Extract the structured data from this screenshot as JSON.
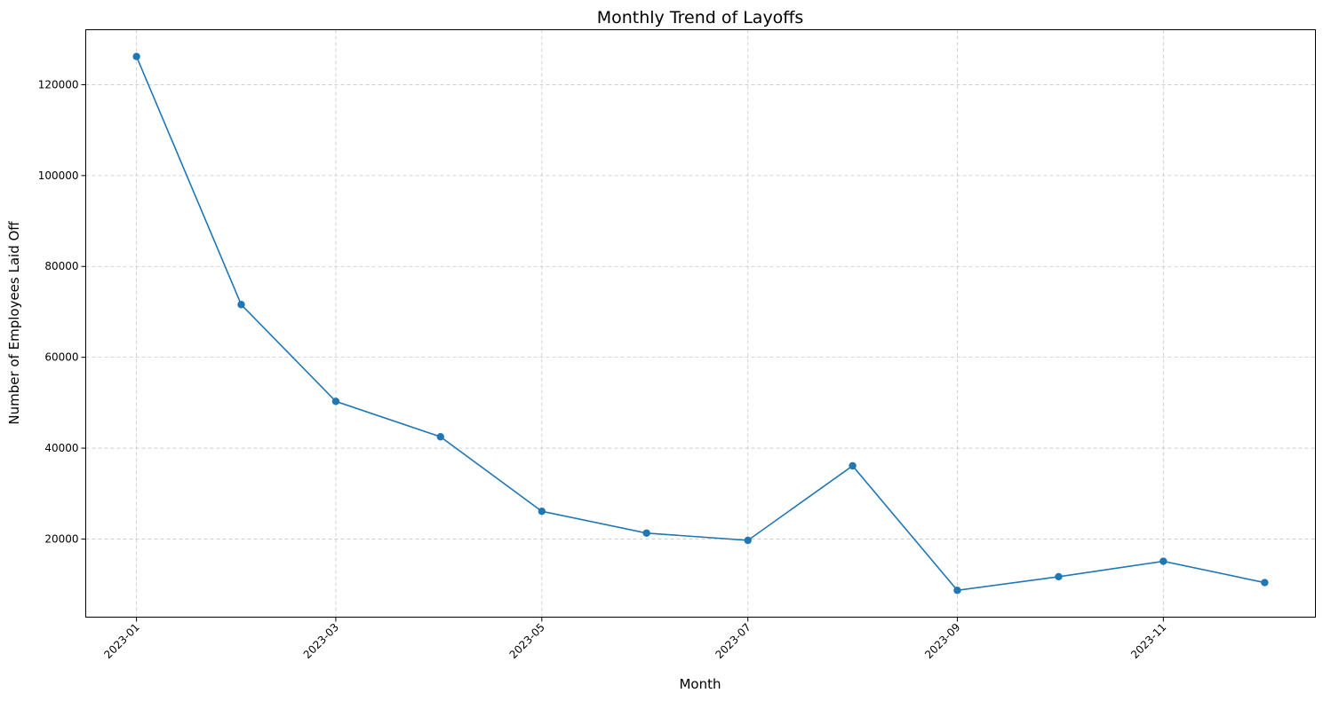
{
  "chart_data": {
    "type": "line",
    "title": "Monthly Trend of Layoffs",
    "xlabel": "Month",
    "ylabel": "Number of Employees Laid Off",
    "x": [
      "2023-01",
      "2023-02",
      "2023-03",
      "2023-04",
      "2023-05",
      "2023-06",
      "2023-07",
      "2023-08",
      "2023-09",
      "2023-10",
      "2023-11",
      "2023-12"
    ],
    "series": [
      {
        "values": [
          126200,
          71600,
          50300,
          42500,
          26100,
          21300,
          19700,
          36100,
          8700,
          11700,
          15100,
          10400
        ],
        "color": "#1f77b4",
        "marker": "circle"
      }
    ],
    "x_ticks": [
      "2023-01",
      "2023-03",
      "2023-05",
      "2023-07",
      "2023-09",
      "2023-11"
    ],
    "y_ticks": [
      20000,
      40000,
      60000,
      80000,
      100000,
      120000
    ],
    "ylim": [
      2800,
      132100
    ],
    "grid": true,
    "legend": "none"
  }
}
